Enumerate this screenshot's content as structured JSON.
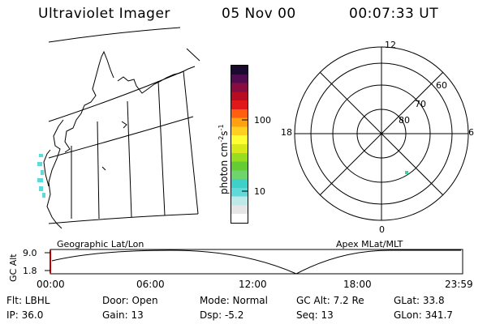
{
  "header": {
    "instrument": "Ultraviolet Imager",
    "date": "05 Nov 00",
    "time": "00:07:33 UT"
  },
  "colorbar": {
    "title": "photon cm",
    "sup1": "-2",
    "mid": "s",
    "sup2": "-1",
    "ticks": [
      "100",
      "10"
    ],
    "colors": [
      "#ffffff",
      "#e6e6e6",
      "#bfe9e9",
      "#5fd9d9",
      "#3fd1c9",
      "#6ed46e",
      "#66cc33",
      "#99dd22",
      "#d8e81a",
      "#ffff33",
      "#ffd020",
      "#ffa010",
      "#ff6010",
      "#e01818",
      "#b80c20",
      "#880c40",
      "#500c50",
      "#1a0a30"
    ]
  },
  "map": {
    "label": "Geographic Lat/Lon"
  },
  "polar": {
    "label": "Apex MLat/MLT",
    "mlt_labels": {
      "top": "12",
      "right": "6",
      "left": "18",
      "bottom": "0"
    },
    "lat_labels": [
      "60",
      "70",
      "80"
    ],
    "data_point_color": "#3fd1a0"
  },
  "altitude_plot": {
    "ylabel": "GC Alt",
    "yticks": [
      "9.0",
      "1.8"
    ],
    "xticks": [
      "00:00",
      "06:00",
      "12:00",
      "18:00",
      "23:59"
    ],
    "marker_color": "#c00000"
  },
  "info": {
    "flt": "Flt: LBHL",
    "ip": "IP: 36.0",
    "door": "Door: Open",
    "gain": "Gain: 13",
    "mode": "Mode: Normal",
    "dsp": "Dsp:    -5.2",
    "gcalt": "GC Alt: 7.2 Re",
    "seq": "Seq: 13",
    "glat": "GLat:   33.8",
    "glon": "GLon: 341.7"
  }
}
